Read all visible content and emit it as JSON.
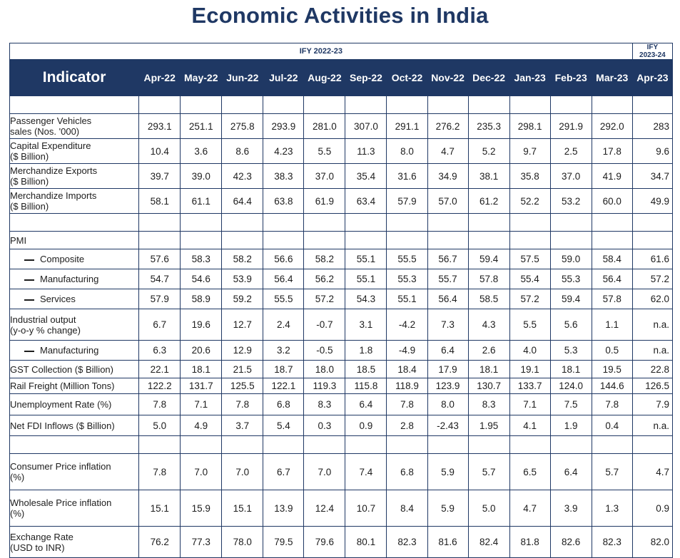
{
  "title": "Economic Activities in India",
  "colors": {
    "navy": "#1f3864"
  },
  "header": {
    "fy_current": "IFY 2022-23",
    "fy_next_line1": "IFY",
    "fy_next_line2": "2023-24",
    "indicator_label": "Indicator",
    "months": [
      "Apr-22",
      "May-22",
      "Jun-22",
      "Jul-22",
      "Aug-22",
      "Sep-22",
      "Oct-22",
      "Nov-22",
      "Dec-22",
      "Jan-23",
      "Feb-23",
      "Mar-23",
      "Apr-23"
    ]
  },
  "rows": [
    {
      "type": "blank"
    },
    {
      "type": "data",
      "label": [
        "Passenger Vehicles",
        "sales (Nos. '000)"
      ],
      "values": [
        "293.1",
        "251.1",
        "275.8",
        "293.9",
        "281.0",
        "307.0",
        "291.1",
        "276.2",
        "235.3",
        "298.1",
        "291.9",
        "292.0",
        "283"
      ]
    },
    {
      "type": "data",
      "label": [
        "Capital Expenditure",
        "($ Billion)"
      ],
      "values": [
        "10.4",
        "3.6",
        "8.6",
        "4.23",
        "5.5",
        "11.3",
        "8.0",
        "4.7",
        "5.2",
        "9.7",
        "2.5",
        "17.8",
        "9.6"
      ]
    },
    {
      "type": "data",
      "label": [
        "Merchandize Exports",
        "($ Billion)"
      ],
      "values": [
        "39.7",
        "39.0",
        "42.3",
        "38.3",
        "37.0",
        "35.4",
        "31.6",
        "34.9",
        "38.1",
        "35.8",
        "37.0",
        "41.9",
        "34.7"
      ]
    },
    {
      "type": "data",
      "label": [
        "Merchandize Imports",
        "($ Billion)"
      ],
      "values": [
        "58.1",
        "61.1",
        "64.4",
        "63.8",
        "61.9",
        "63.4",
        "57.9",
        "57.0",
        "61.2",
        "52.2",
        "53.2",
        "60.0",
        "49.9"
      ]
    },
    {
      "type": "blank"
    },
    {
      "type": "section",
      "label": [
        "PMI"
      ]
    },
    {
      "type": "sub",
      "label": [
        "Composite"
      ],
      "values": [
        "57.6",
        "58.3",
        "58.2",
        "56.6",
        "58.2",
        "55.1",
        "55.5",
        "56.7",
        "59.4",
        "57.5",
        "59.0",
        "58.4",
        "61.6"
      ]
    },
    {
      "type": "sub",
      "label": [
        "Manufacturing"
      ],
      "values": [
        "54.7",
        "54.6",
        "53.9",
        "56.4",
        "56.2",
        "55.1",
        "55.3",
        "55.7",
        "57.8",
        "55.4",
        "55.3",
        "56.4",
        "57.2"
      ]
    },
    {
      "type": "sub",
      "label": [
        "Services"
      ],
      "values": [
        "57.9",
        "58.9",
        "59.2",
        "55.5",
        "57.2",
        "54.3",
        "55.1",
        "56.4",
        "58.5",
        "57.2",
        "59.4",
        "57.8",
        "62.0"
      ]
    },
    {
      "type": "data",
      "label": [
        "Industrial output",
        "(y-o-y % change)"
      ],
      "values": [
        "6.7",
        "19.6",
        "12.7",
        "2.4",
        "-0.7",
        "3.1",
        "-4.2",
        "7.3",
        "4.3",
        "5.5",
        "5.6",
        "1.1",
        "n.a."
      ]
    },
    {
      "type": "sub",
      "label": [
        "Manufacturing"
      ],
      "values": [
        "6.3",
        "20.6",
        "12.9",
        "3.2",
        "-0.5",
        "1.8",
        "-4.9",
        "6.4",
        "2.6",
        "4.0",
        "5.3",
        "0.5",
        "n.a."
      ]
    },
    {
      "type": "data",
      "label": [
        "GST Collection ($ Billion)"
      ],
      "values": [
        "22.1",
        "18.1",
        "21.5",
        "18.7",
        "18.0",
        "18.5",
        "18.4",
        "17.9",
        "18.1",
        "19.1",
        "18.1",
        "19.5",
        "22.8"
      ]
    },
    {
      "type": "data",
      "label": [
        "Rail Freight (Million Tons)"
      ],
      "values": [
        "122.2",
        "131.7",
        "125.5",
        "122.1",
        "119.3",
        "115.8",
        "118.9",
        "123.9",
        "130.7",
        "133.7",
        "124.0",
        "144.6",
        "126.5"
      ]
    },
    {
      "type": "data",
      "label": [
        "Unemployment Rate (%)"
      ],
      "values": [
        "7.8",
        "7.1",
        "7.8",
        "6.8",
        "8.3",
        "6.4",
        "7.8",
        "8.0",
        "8.3",
        "7.1",
        "7.5",
        "7.8",
        "7.9"
      ]
    },
    {
      "type": "data",
      "label": [
        "Net FDI Inflows ($ Billion)"
      ],
      "values": [
        "5.0",
        "4.9",
        "3.7",
        "5.4",
        "0.3",
        "0.9",
        "2.8",
        "-2.43",
        "1.95",
        "4.1",
        "1.9",
        "0.4",
        "n.a."
      ]
    },
    {
      "type": "blank"
    },
    {
      "type": "data",
      "label": [
        "Consumer Price inflation",
        "(%)"
      ],
      "values": [
        "7.8",
        "7.0",
        "7.0",
        "6.7",
        "7.0",
        "7.4",
        "6.8",
        "5.9",
        "5.7",
        "6.5",
        "6.4",
        "5.7",
        "4.7"
      ]
    },
    {
      "type": "data",
      "label": [
        "Wholesale Price inflation",
        "(%)"
      ],
      "values": [
        "15.1",
        "15.9",
        "15.1",
        "13.9",
        "12.4",
        "10.7",
        "8.4",
        "5.9",
        "5.0",
        "4.7",
        "3.9",
        "1.3",
        "0.9"
      ]
    },
    {
      "type": "data",
      "label": [
        "Exchange Rate",
        "(USD to INR)"
      ],
      "values": [
        "76.2",
        "77.3",
        "78.0",
        "79.5",
        "79.6",
        "80.1",
        "82.3",
        "81.6",
        "82.4",
        "81.8",
        "82.6",
        "82.3",
        "82.0"
      ]
    }
  ]
}
